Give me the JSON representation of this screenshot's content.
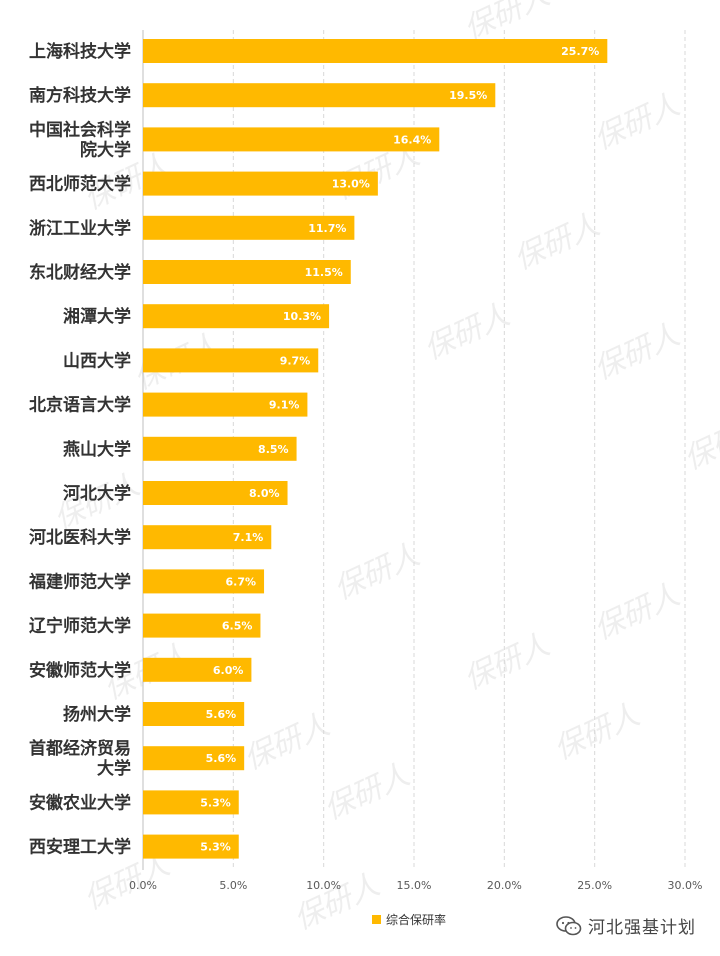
{
  "chart_data": {
    "type": "bar",
    "orientation": "horizontal",
    "categories": [
      "上海科技大学",
      "南方科技大学",
      "中国社会科学院大学",
      "西北师范大学",
      "浙江工业大学",
      "东北财经大学",
      "湘潭大学",
      "山西大学",
      "北京语言大学",
      "燕山大学",
      "河北大学",
      "河北医科大学",
      "福建师范大学",
      "辽宁师范大学",
      "安徽师范大学",
      "扬州大学",
      "首都经济贸易大学",
      "安徽农业大学",
      "西安理工大学"
    ],
    "category_lines": [
      [
        "上海科技大学"
      ],
      [
        "南方科技大学"
      ],
      [
        "中国社会科学",
        "院大学"
      ],
      [
        "西北师范大学"
      ],
      [
        "浙江工业大学"
      ],
      [
        "东北财经大学"
      ],
      [
        "湘潭大学"
      ],
      [
        "山西大学"
      ],
      [
        "北京语言大学"
      ],
      [
        "燕山大学"
      ],
      [
        "河北大学"
      ],
      [
        "河北医科大学"
      ],
      [
        "福建师范大学"
      ],
      [
        "辽宁师范大学"
      ],
      [
        "安徽师范大学"
      ],
      [
        "扬州大学"
      ],
      [
        "首都经济贸易",
        "大学"
      ],
      [
        "安徽农业大学"
      ],
      [
        "西安理工大学"
      ]
    ],
    "series": [
      {
        "name": "综合保研率",
        "values": [
          25.7,
          19.5,
          16.4,
          13.0,
          11.7,
          11.5,
          10.3,
          9.7,
          9.1,
          8.5,
          8.0,
          7.1,
          6.7,
          6.5,
          6.0,
          5.6,
          5.6,
          5.3,
          5.3
        ],
        "data_labels": [
          "25.7%",
          "19.5%",
          "16.4%",
          "13.0%",
          "11.7%",
          "11.5%",
          "10.3%",
          "9.7%",
          "9.1%",
          "8.5%",
          "8.0%",
          "7.1%",
          "6.7%",
          "6.5%",
          "6.0%",
          "5.6%",
          "5.6%",
          "5.3%",
          "5.3%"
        ]
      }
    ],
    "xlim": [
      0,
      30
    ],
    "xticks": [
      0,
      5,
      10,
      15,
      20,
      25,
      30
    ],
    "xtick_labels": [
      "0.0%",
      "5.0%",
      "10.0%",
      "15.0%",
      "20.0%",
      "25.0%",
      "30.0%"
    ],
    "grid": true,
    "legend_position": "bottom",
    "colors": {
      "bar": "#FFB900",
      "grid": "#d9d9d9",
      "label": "#333333",
      "data_label": "#ffffff",
      "axis_text": "#595959"
    }
  },
  "legend": {
    "label": "综合保研率"
  },
  "footer": {
    "brand": "河北强基计划"
  },
  "watermark": {
    "text": "保研人"
  }
}
